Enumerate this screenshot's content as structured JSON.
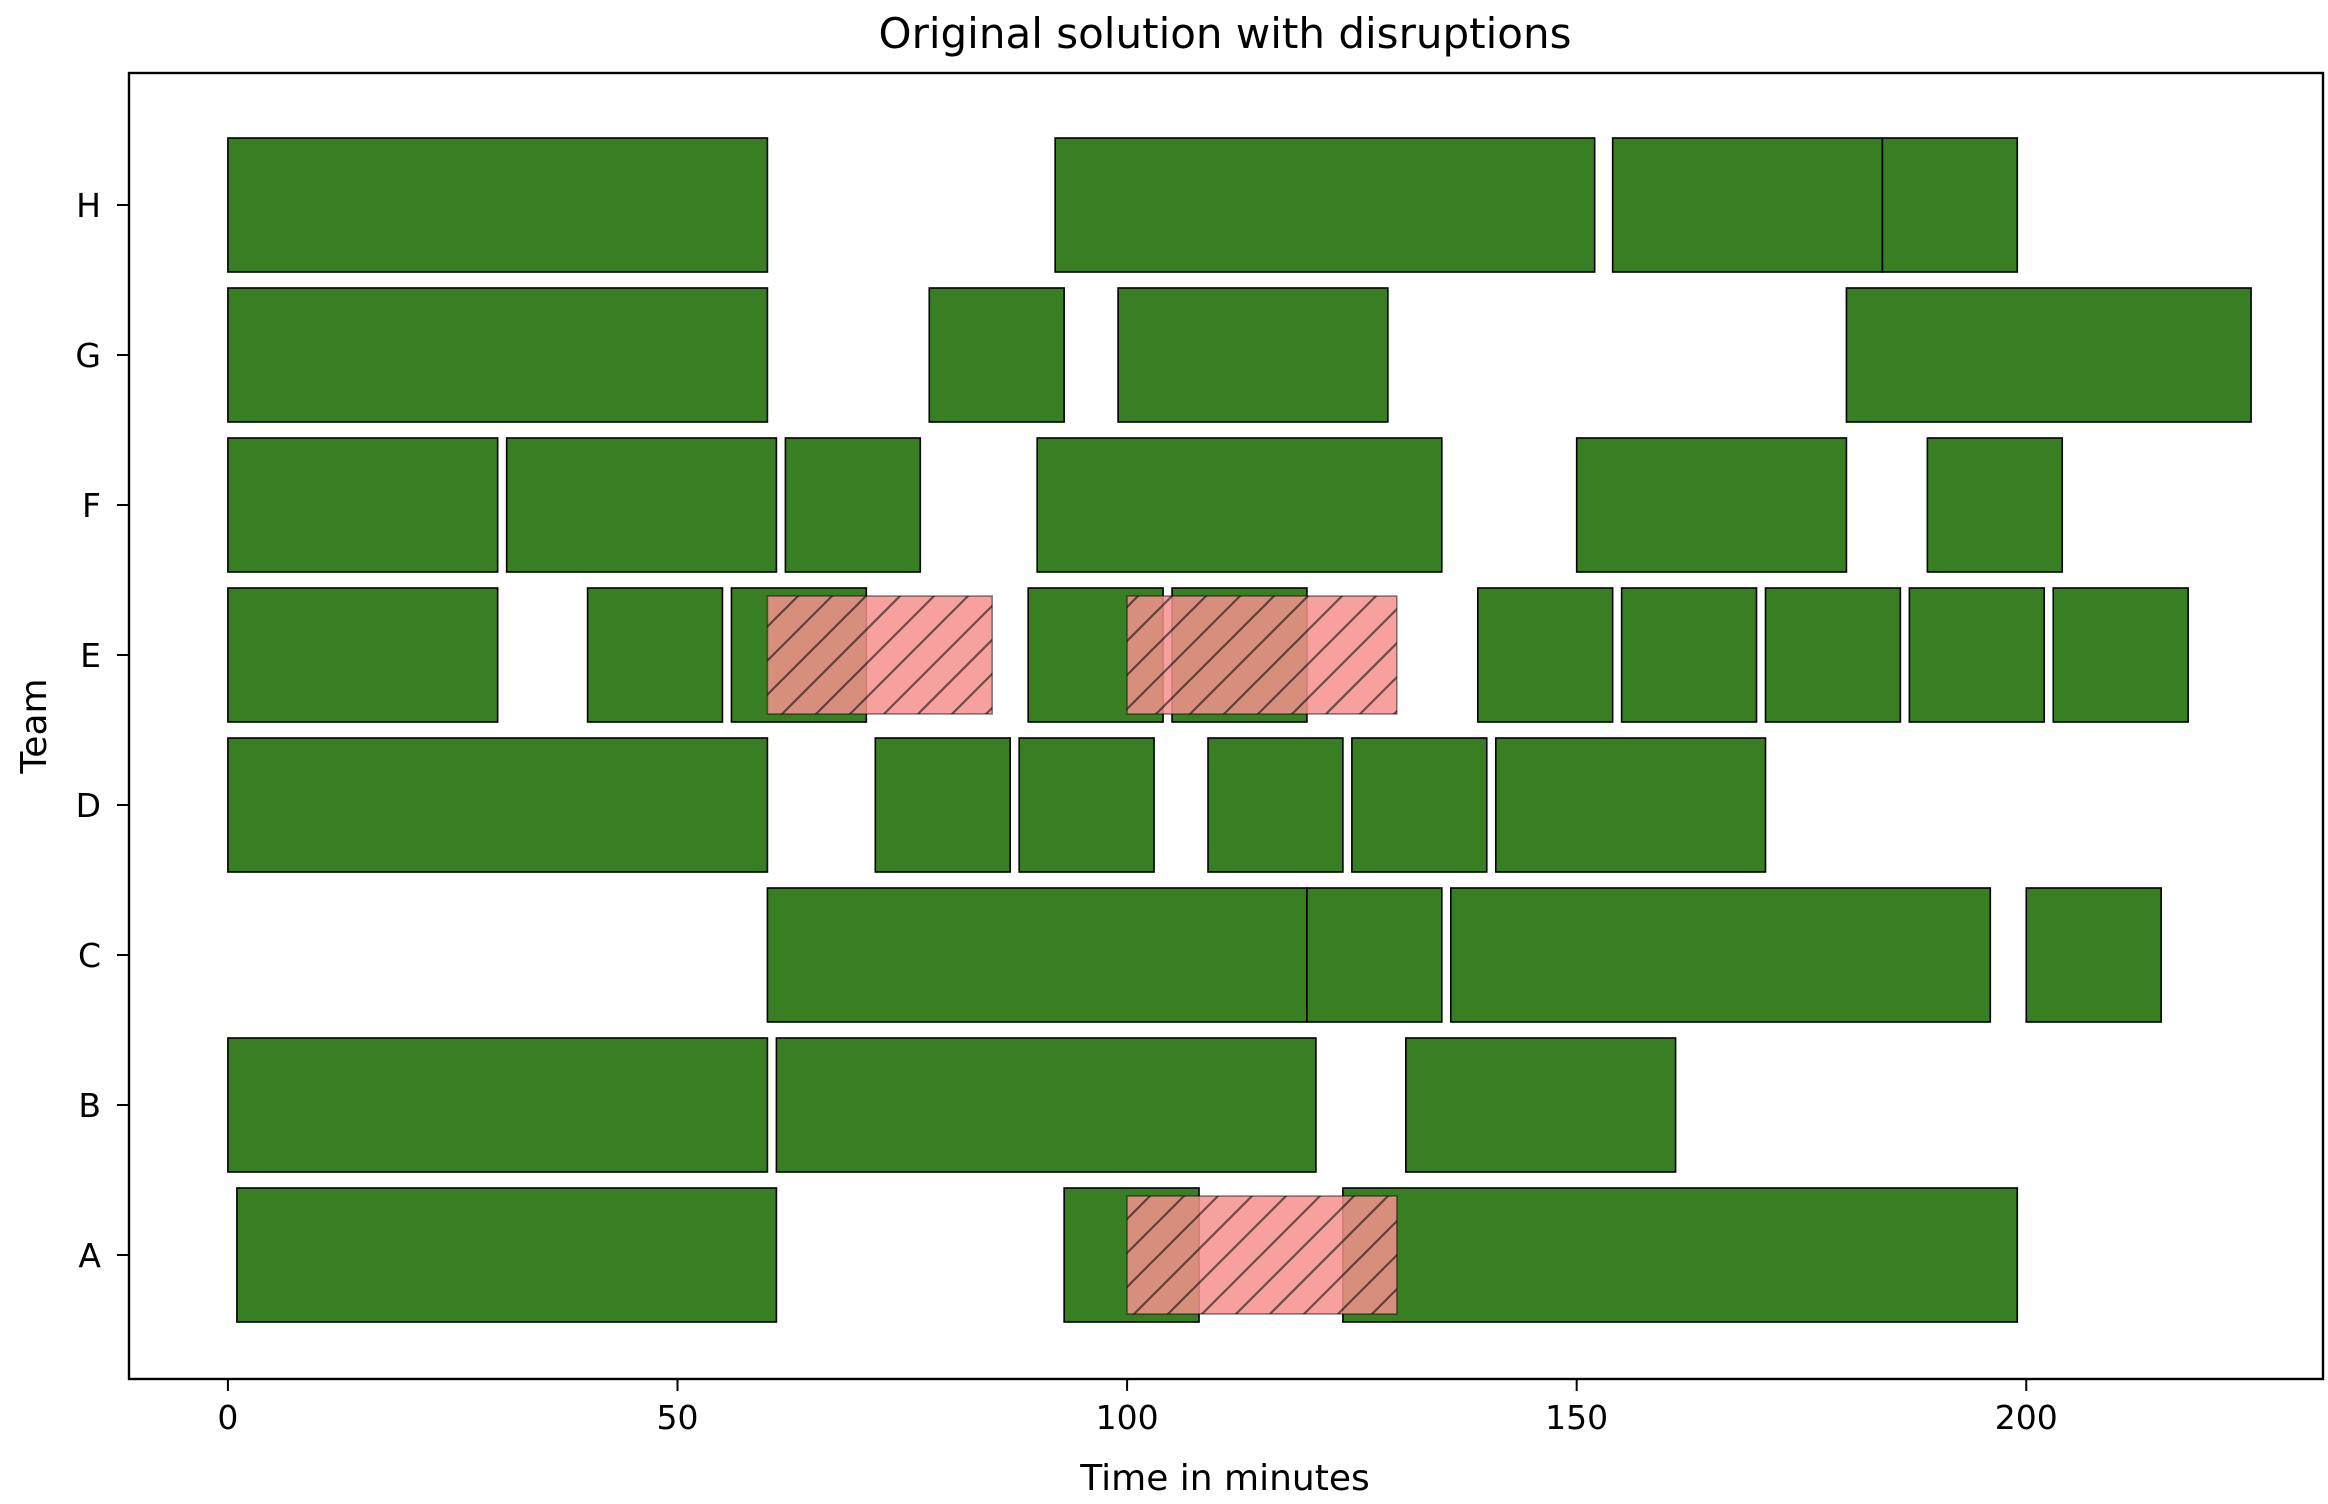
{
  "chart_data": {
    "type": "gantt",
    "title": "Original solution with disruptions",
    "xlabel": "Time in minutes",
    "ylabel": "Team",
    "xlim": [
      -11,
      233
    ],
    "x_ticks": [
      0,
      50,
      100,
      150,
      200
    ],
    "teams": [
      "A",
      "B",
      "C",
      "D",
      "E",
      "F",
      "G",
      "H"
    ],
    "grid": false,
    "colors": {
      "task": "#387f23",
      "disruption": "#f4908c"
    },
    "tasks": {
      "A": [
        [
          1,
          61
        ],
        [
          93,
          108
        ],
        [
          124,
          199
        ]
      ],
      "B": [
        [
          0,
          60
        ],
        [
          61,
          121
        ],
        [
          131,
          161
        ]
      ],
      "C": [
        [
          60,
          120
        ],
        [
          120,
          135
        ],
        [
          136,
          196
        ],
        [
          200,
          215
        ]
      ],
      "D": [
        [
          0,
          60
        ],
        [
          72,
          87
        ],
        [
          88,
          103
        ],
        [
          109,
          124
        ],
        [
          125,
          140
        ],
        [
          141,
          171
        ]
      ],
      "E": [
        [
          0,
          30
        ],
        [
          40,
          55
        ],
        [
          56,
          71
        ],
        [
          89,
          104
        ],
        [
          105,
          120
        ],
        [
          139,
          154
        ],
        [
          155,
          170
        ],
        [
          171,
          186
        ],
        [
          187,
          202
        ],
        [
          203,
          218
        ]
      ],
      "F": [
        [
          0,
          30
        ],
        [
          31,
          61
        ],
        [
          62,
          77
        ],
        [
          90,
          135
        ],
        [
          150,
          180
        ],
        [
          189,
          204
        ]
      ],
      "G": [
        [
          0,
          60
        ],
        [
          78,
          93
        ],
        [
          99,
          129
        ],
        [
          180,
          225
        ]
      ],
      "H": [
        [
          0,
          60
        ],
        [
          92,
          152
        ],
        [
          154,
          184
        ],
        [
          184,
          199
        ]
      ]
    },
    "disruptions": {
      "A": [
        [
          100,
          130
        ]
      ],
      "E": [
        [
          60,
          85
        ],
        [
          100,
          130
        ]
      ]
    }
  }
}
